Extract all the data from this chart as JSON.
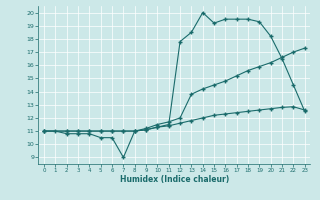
{
  "xlabel": "Humidex (Indice chaleur)",
  "bg_color": "#cce8e8",
  "line_color": "#1a6b6b",
  "grid_color": "#b0d4d4",
  "xlim": [
    -0.5,
    23.5
  ],
  "ylim": [
    8.5,
    20.5
  ],
  "xticks": [
    0,
    1,
    2,
    3,
    4,
    5,
    6,
    7,
    8,
    9,
    10,
    11,
    12,
    13,
    14,
    15,
    16,
    17,
    18,
    19,
    20,
    21,
    22,
    23
  ],
  "yticks": [
    9,
    10,
    11,
    12,
    13,
    14,
    15,
    16,
    17,
    18,
    19,
    20
  ],
  "line1_x": [
    0,
    1,
    2,
    3,
    4,
    5,
    6,
    7,
    8,
    9,
    10,
    11,
    12,
    13,
    14,
    15,
    16,
    17,
    18,
    19,
    20,
    21,
    22,
    23
  ],
  "line1_y": [
    11,
    11,
    10.8,
    10.8,
    10.8,
    10.5,
    10.5,
    9.0,
    11.0,
    11.1,
    11.3,
    11.5,
    17.8,
    18.5,
    20.0,
    19.2,
    19.5,
    19.5,
    19.5,
    19.3,
    18.2,
    16.5,
    14.5,
    12.5
  ],
  "line2_x": [
    0,
    2,
    3,
    4,
    5,
    6,
    7,
    8,
    9,
    10,
    11,
    12,
    13,
    14,
    15,
    16,
    17,
    18,
    19,
    20,
    21,
    22,
    23
  ],
  "line2_y": [
    11,
    11,
    11,
    11,
    11,
    11,
    11,
    11,
    11.2,
    11.5,
    11.7,
    12.0,
    13.8,
    14.2,
    14.5,
    14.8,
    15.2,
    15.6,
    15.9,
    16.2,
    16.6,
    17.0,
    17.3
  ],
  "line3_x": [
    0,
    2,
    3,
    4,
    5,
    6,
    7,
    8,
    9,
    10,
    11,
    12,
    13,
    14,
    15,
    16,
    17,
    18,
    19,
    20,
    21,
    22,
    23
  ],
  "line3_y": [
    11,
    11,
    11,
    11,
    11,
    11,
    11,
    11,
    11.1,
    11.3,
    11.4,
    11.6,
    11.8,
    12.0,
    12.2,
    12.3,
    12.4,
    12.5,
    12.6,
    12.7,
    12.8,
    12.85,
    12.6
  ]
}
